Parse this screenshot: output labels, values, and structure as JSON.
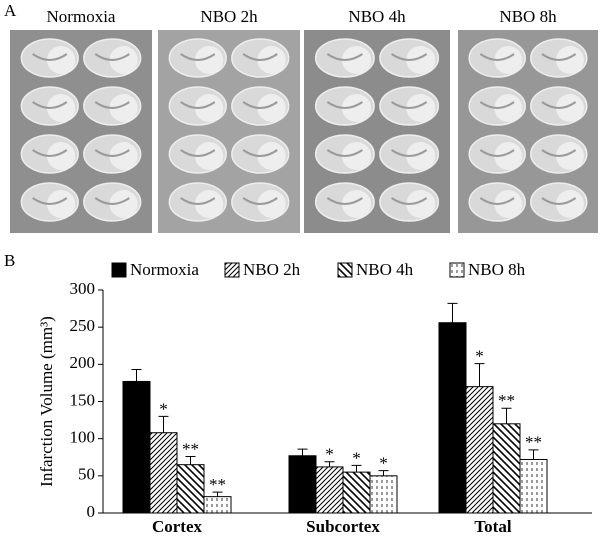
{
  "panel_a": {
    "label": "A",
    "columns": [
      "Normoxia",
      "NBO 2h",
      "NBO 4h",
      "NBO 8h"
    ]
  },
  "panel_b": {
    "label": "B"
  },
  "chart_data": {
    "type": "bar",
    "y_label": "Infarction Volume (mm³)",
    "categories": [
      "Cortex",
      "Subcortex",
      "Total"
    ],
    "series": [
      {
        "name": "Normoxia",
        "color": "#000000",
        "pattern": "solid",
        "values": [
          177,
          77,
          256
        ],
        "errors": [
          16,
          9,
          26
        ],
        "significance": [
          null,
          null,
          null
        ]
      },
      {
        "name": "NBO 2h",
        "color": "#000000",
        "pattern": "diagonal-up",
        "values": [
          108,
          62,
          170
        ],
        "errors": [
          22,
          7,
          31
        ],
        "significance": [
          "*",
          "*",
          "*"
        ]
      },
      {
        "name": "NBO 4h",
        "color": "#000000",
        "pattern": "diagonal-down",
        "values": [
          65,
          55,
          120
        ],
        "errors": [
          11,
          9,
          21
        ],
        "significance": [
          "**",
          "*",
          "**"
        ]
      },
      {
        "name": "NBO 8h",
        "color": "#000000",
        "pattern": "dashes",
        "values": [
          22,
          50,
          72
        ],
        "errors": [
          6,
          7,
          13
        ],
        "significance": [
          "**",
          "*",
          "**"
        ]
      }
    ],
    "ylim": [
      0,
      300
    ],
    "yticks": [
      0,
      50,
      100,
      150,
      200,
      250,
      300
    ]
  }
}
